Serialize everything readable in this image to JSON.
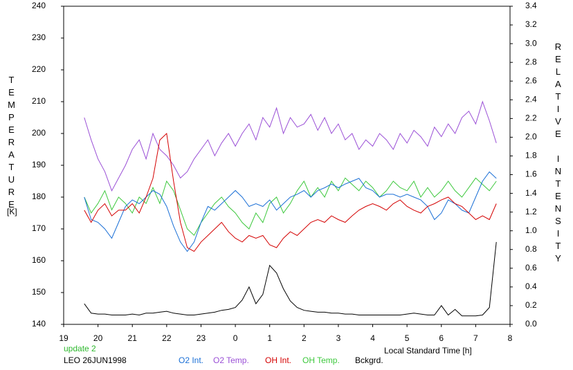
{
  "chart_data": {
    "type": "line",
    "x_label": "Local Standard Time [h]",
    "y_label": "TEMPERATURE",
    "y_unit": "[K]",
    "y2_label": "RELATIVE INTENSITY",
    "annotations": [
      "update 2",
      "LEO 26JUN1998"
    ],
    "xlim": [
      19,
      32
    ],
    "xticks": [
      19,
      20,
      21,
      22,
      23,
      {
        "value": 24,
        "label": "0"
      },
      {
        "value": 25,
        "label": "1"
      },
      {
        "value": 26,
        "label": "2"
      },
      {
        "value": 27,
        "label": "3"
      },
      {
        "value": 28,
        "label": "4"
      },
      {
        "value": 29,
        "label": "5"
      },
      {
        "value": 30,
        "label": "6"
      },
      {
        "value": 31,
        "label": "7"
      },
      {
        "value": 32,
        "label": "8"
      }
    ],
    "ylim": [
      140,
      240
    ],
    "yticks": [
      140,
      150,
      160,
      170,
      180,
      190,
      200,
      210,
      220,
      230,
      240
    ],
    "y2lim": [
      0,
      3.4
    ],
    "y2ticks": [
      {
        "value": 0,
        "label": "0.0"
      },
      0.2,
      0.4,
      0.6,
      0.8,
      {
        "value": 1,
        "label": "1.0"
      },
      1.2,
      1.4,
      1.6,
      1.8,
      {
        "value": 2,
        "label": "2.0"
      },
      2.2,
      2.4,
      2.6,
      2.8,
      {
        "value": 3,
        "label": "3.0"
      },
      3.2,
      3.4
    ],
    "x": [
      19.6,
      19.8,
      20,
      20.2,
      20.4,
      20.6,
      20.8,
      21,
      21.2,
      21.4,
      21.6,
      21.8,
      22,
      22.2,
      22.4,
      22.6,
      22.8,
      23,
      23.2,
      23.4,
      23.6,
      23.8,
      24,
      24.2,
      24.4,
      24.6,
      24.8,
      25,
      25.2,
      25.4,
      25.6,
      25.8,
      26,
      26.2,
      26.4,
      26.6,
      26.8,
      27,
      27.2,
      27.4,
      27.6,
      27.8,
      28,
      28.2,
      28.4,
      28.6,
      28.8,
      29,
      29.2,
      29.4,
      29.6,
      29.8,
      30,
      30.2,
      30.4,
      30.6,
      30.8,
      31,
      31.2,
      31.4,
      31.6
    ],
    "series": [
      {
        "name": "O2 Int.",
        "color": "#1a6fd6",
        "axis": "y2",
        "values": [
          1.36,
          1.12,
          1.09,
          1.02,
          0.92,
          1.09,
          1.26,
          1.33,
          1.29,
          1.36,
          1.43,
          1.39,
          1.26,
          1.05,
          0.88,
          0.78,
          0.88,
          1.09,
          1.26,
          1.22,
          1.29,
          1.36,
          1.43,
          1.36,
          1.26,
          1.29,
          1.26,
          1.33,
          1.22,
          1.29,
          1.36,
          1.39,
          1.43,
          1.36,
          1.43,
          1.46,
          1.5,
          1.46,
          1.5,
          1.53,
          1.56,
          1.46,
          1.43,
          1.36,
          1.39,
          1.39,
          1.36,
          1.39,
          1.36,
          1.33,
          1.26,
          1.12,
          1.19,
          1.33,
          1.29,
          1.22,
          1.19,
          1.36,
          1.53,
          1.63,
          1.56
        ]
      },
      {
        "name": "O2 Temp.",
        "color": "#9a4fd6",
        "values": [
          205,
          198,
          192,
          188,
          182,
          186,
          190,
          195,
          198,
          192,
          200,
          195,
          193,
          190,
          186,
          188,
          192,
          195,
          198,
          193,
          197,
          200,
          196,
          200,
          203,
          198,
          205,
          202,
          208,
          200,
          205,
          202,
          203,
          206,
          201,
          205,
          200,
          203,
          198,
          200,
          195,
          198,
          196,
          200,
          198,
          195,
          200,
          197,
          201,
          199,
          196,
          202,
          199,
          203,
          200,
          205,
          207,
          203,
          210,
          204,
          197
        ]
      },
      {
        "name": "OH Int.",
        "color": "#d40000",
        "axis": "y2",
        "values": [
          1.22,
          1.09,
          1.22,
          1.29,
          1.16,
          1.22,
          1.22,
          1.29,
          1.19,
          1.36,
          1.56,
          1.97,
          2.04,
          1.53,
          1.09,
          0.82,
          0.78,
          0.88,
          0.95,
          1.02,
          1.09,
          0.99,
          0.92,
          0.88,
          0.95,
          0.92,
          0.95,
          0.85,
          0.82,
          0.92,
          0.99,
          0.95,
          1.02,
          1.09,
          1.12,
          1.09,
          1.16,
          1.12,
          1.09,
          1.16,
          1.22,
          1.26,
          1.29,
          1.26,
          1.22,
          1.29,
          1.33,
          1.26,
          1.22,
          1.19,
          1.26,
          1.29,
          1.33,
          1.36,
          1.29,
          1.26,
          1.19,
          1.12,
          1.16,
          1.12,
          1.29
        ]
      },
      {
        "name": "OH Temp.",
        "color": "#3cc83c",
        "values": [
          180,
          175,
          178,
          182,
          176,
          180,
          178,
          175,
          180,
          178,
          183,
          178,
          185,
          182,
          176,
          170,
          168,
          172,
          175,
          178,
          180,
          177,
          175,
          172,
          170,
          175,
          172,
          178,
          180,
          175,
          178,
          182,
          185,
          180,
          183,
          180,
          185,
          182,
          186,
          184,
          182,
          185,
          183,
          180,
          182,
          185,
          183,
          182,
          185,
          180,
          183,
          180,
          182,
          185,
          182,
          180,
          183,
          186,
          184,
          182,
          185
        ]
      },
      {
        "name": "Bckgrd.",
        "color": "#000000",
        "axis": "y2",
        "values": [
          0.22,
          0.12,
          0.11,
          0.11,
          0.1,
          0.1,
          0.1,
          0.11,
          0.1,
          0.12,
          0.12,
          0.13,
          0.14,
          0.12,
          0.11,
          0.1,
          0.1,
          0.11,
          0.12,
          0.13,
          0.15,
          0.16,
          0.18,
          0.26,
          0.4,
          0.22,
          0.32,
          0.63,
          0.55,
          0.38,
          0.25,
          0.18,
          0.15,
          0.14,
          0.13,
          0.13,
          0.12,
          0.12,
          0.11,
          0.11,
          0.1,
          0.1,
          0.1,
          0.1,
          0.1,
          0.1,
          0.1,
          0.11,
          0.12,
          0.11,
          0.1,
          0.1,
          0.2,
          0.1,
          0.16,
          0.09,
          0.09,
          0.09,
          0.1,
          0.18,
          0.88
        ]
      }
    ]
  }
}
